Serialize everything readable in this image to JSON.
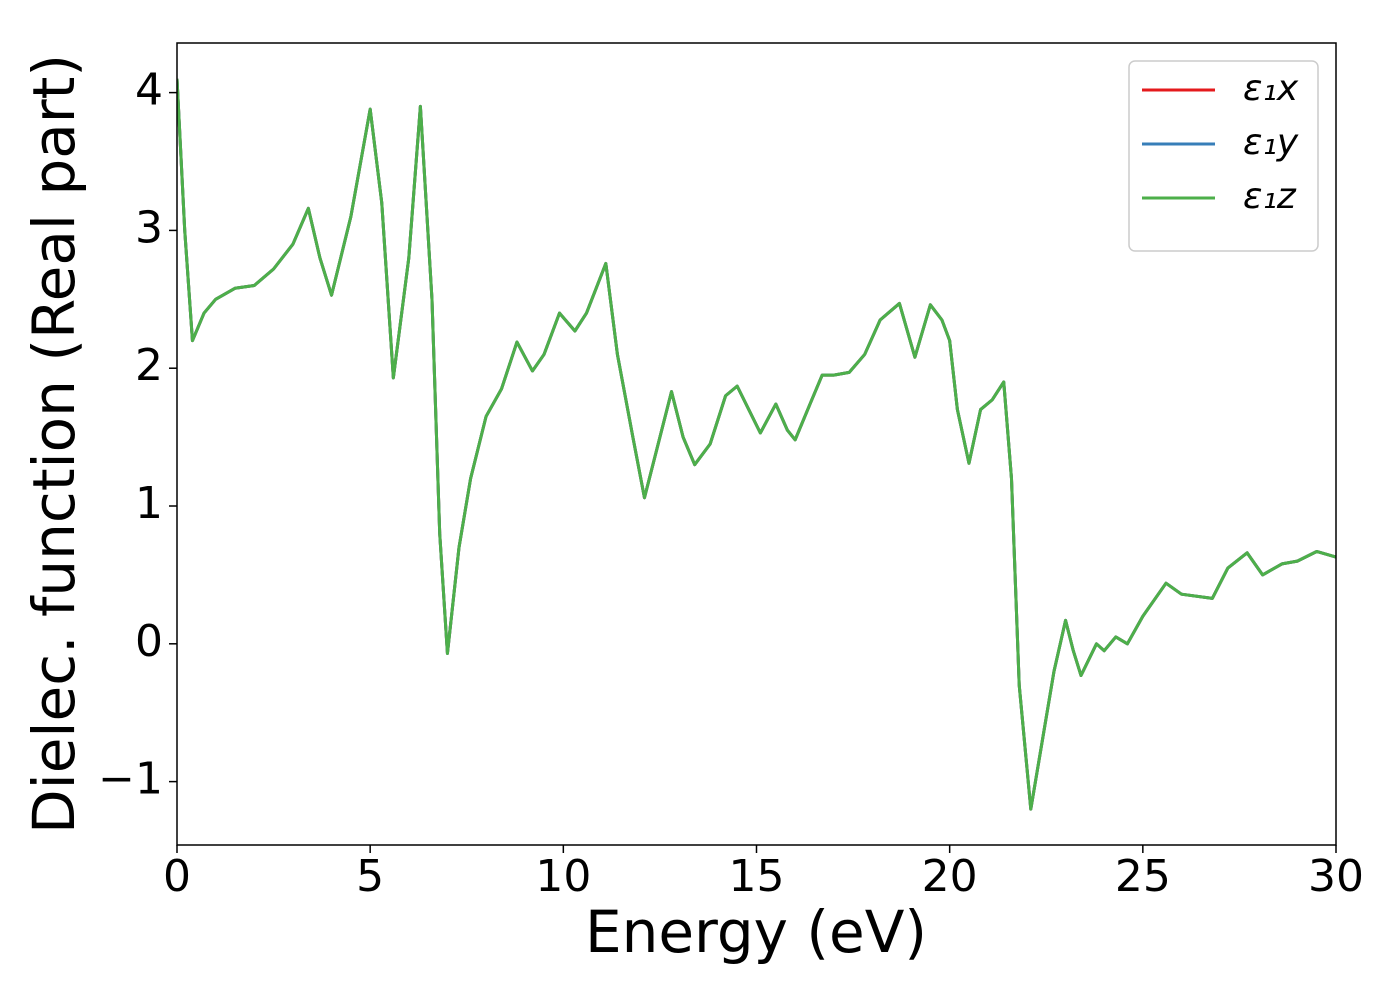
{
  "chart_data": {
    "type": "line",
    "xlabel": "Energy (eV)",
    "ylabel": "Dielec. function (Real part)",
    "x": [
      0,
      0.2,
      0.4,
      0.7,
      1.0,
      1.5,
      2.0,
      2.5,
      3.0,
      3.4,
      3.7,
      4.0,
      4.5,
      5.0,
      5.3,
      5.6,
      6.0,
      6.3,
      6.6,
      6.8,
      7.0,
      7.3,
      7.6,
      8.0,
      8.4,
      8.8,
      9.2,
      9.5,
      9.9,
      10.3,
      10.6,
      11.1,
      11.4,
      11.8,
      12.1,
      12.5,
      12.8,
      13.1,
      13.4,
      13.8,
      14.2,
      14.5,
      14.8,
      15.1,
      15.5,
      15.8,
      16.0,
      16.4,
      16.7,
      17.0,
      17.4,
      17.8,
      18.2,
      18.7,
      19.1,
      19.5,
      19.8,
      20.0,
      20.2,
      20.5,
      20.8,
      21.1,
      21.4,
      21.6,
      21.8,
      22.1,
      22.4,
      22.7,
      23.0,
      23.2,
      23.4,
      23.8,
      24.0,
      24.3,
      24.6,
      25.0,
      25.6,
      26.0,
      26.8,
      27.2,
      27.7,
      28.1,
      28.6,
      29.0,
      29.5,
      30.0
    ],
    "series": [
      {
        "name": "ε₁x",
        "color": "#e41a1c",
        "values": [
          4.1,
          3.0,
          2.2,
          2.4,
          2.5,
          2.58,
          2.6,
          2.72,
          2.9,
          3.16,
          2.8,
          2.53,
          3.1,
          3.88,
          3.2,
          1.93,
          2.8,
          3.9,
          2.5,
          0.8,
          -0.07,
          0.7,
          1.2,
          1.65,
          1.85,
          2.19,
          1.98,
          2.1,
          2.4,
          2.27,
          2.4,
          2.76,
          2.1,
          1.5,
          1.06,
          1.5,
          1.83,
          1.5,
          1.3,
          1.45,
          1.8,
          1.87,
          1.7,
          1.53,
          1.74,
          1.55,
          1.48,
          1.75,
          1.95,
          1.95,
          1.97,
          2.1,
          2.35,
          2.47,
          2.08,
          2.46,
          2.35,
          2.2,
          1.7,
          1.31,
          1.7,
          1.77,
          1.9,
          1.2,
          -0.3,
          -1.2,
          -0.7,
          -0.2,
          0.17,
          -0.05,
          -0.23,
          0.0,
          -0.05,
          0.05,
          0.0,
          0.2,
          0.44,
          0.36,
          0.33,
          0.55,
          0.66,
          0.5,
          0.58,
          0.6,
          0.67,
          0.63
        ]
      },
      {
        "name": "ε₁y",
        "color": "#377eb8",
        "values": [
          4.1,
          3.0,
          2.2,
          2.4,
          2.5,
          2.58,
          2.6,
          2.72,
          2.9,
          3.16,
          2.8,
          2.53,
          3.1,
          3.88,
          3.2,
          1.93,
          2.8,
          3.9,
          2.5,
          0.8,
          -0.07,
          0.7,
          1.2,
          1.65,
          1.85,
          2.19,
          1.98,
          2.1,
          2.4,
          2.27,
          2.4,
          2.76,
          2.1,
          1.5,
          1.06,
          1.5,
          1.83,
          1.5,
          1.3,
          1.45,
          1.8,
          1.87,
          1.7,
          1.53,
          1.74,
          1.55,
          1.48,
          1.75,
          1.95,
          1.95,
          1.97,
          2.1,
          2.35,
          2.47,
          2.08,
          2.46,
          2.35,
          2.2,
          1.7,
          1.31,
          1.7,
          1.77,
          1.9,
          1.2,
          -0.3,
          -1.2,
          -0.7,
          -0.2,
          0.17,
          -0.05,
          -0.23,
          0.0,
          -0.05,
          0.05,
          0.0,
          0.2,
          0.44,
          0.36,
          0.33,
          0.55,
          0.66,
          0.5,
          0.58,
          0.6,
          0.67,
          0.63
        ]
      },
      {
        "name": "ε₁z",
        "color": "#4daf4a",
        "values": [
          4.1,
          3.0,
          2.2,
          2.4,
          2.5,
          2.58,
          2.6,
          2.72,
          2.9,
          3.16,
          2.8,
          2.53,
          3.1,
          3.88,
          3.2,
          1.93,
          2.8,
          3.9,
          2.5,
          0.8,
          -0.07,
          0.7,
          1.2,
          1.65,
          1.85,
          2.19,
          1.98,
          2.1,
          2.4,
          2.27,
          2.4,
          2.76,
          2.1,
          1.5,
          1.06,
          1.5,
          1.83,
          1.5,
          1.3,
          1.45,
          1.8,
          1.87,
          1.7,
          1.53,
          1.74,
          1.55,
          1.48,
          1.75,
          1.95,
          1.95,
          1.97,
          2.1,
          2.35,
          2.47,
          2.08,
          2.46,
          2.35,
          2.2,
          1.7,
          1.31,
          1.7,
          1.77,
          1.9,
          1.2,
          -0.3,
          -1.2,
          -0.7,
          -0.2,
          0.17,
          -0.05,
          -0.23,
          0.0,
          -0.05,
          0.05,
          0.0,
          0.2,
          0.44,
          0.36,
          0.33,
          0.55,
          0.66,
          0.5,
          0.58,
          0.6,
          0.67,
          0.63
        ]
      }
    ],
    "xlim": [
      0,
      30
    ],
    "xticks": [
      0,
      5,
      10,
      15,
      20,
      25,
      30
    ],
    "ylim": [
      -1.46,
      4.36
    ],
    "yticks": [
      {
        "value": -1,
        "label": "−1"
      },
      0,
      1,
      2,
      3,
      4
    ],
    "grid": false,
    "legend": "upper right"
  }
}
